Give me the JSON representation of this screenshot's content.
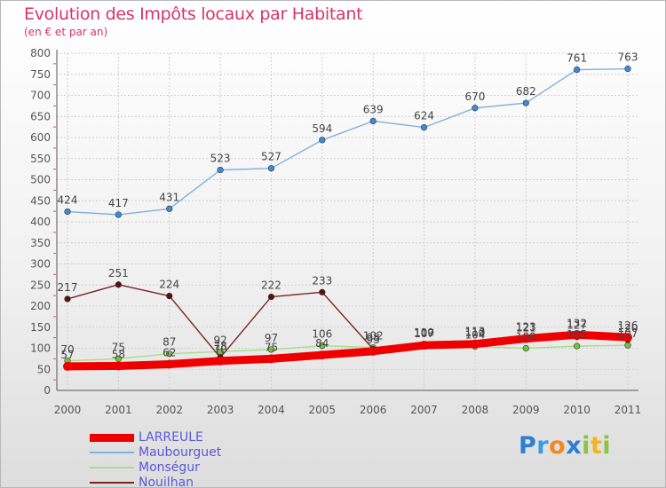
{
  "title": "Evolution des Impôts locaux par Habitant",
  "subtitle": "(en € et par an)",
  "logo": {
    "letters": [
      {
        "ch": "P",
        "color": "#2f7fd0"
      },
      {
        "ch": "r",
        "color": "#3a9be0"
      },
      {
        "ch": "o",
        "color": "#f08a1e"
      },
      {
        "ch": "x",
        "color": "#2f7fd0"
      },
      {
        "ch": "i",
        "color": "#8cc43f"
      },
      {
        "ch": "t",
        "color": "#f0b41e"
      },
      {
        "ch": "i",
        "color": "#8cc43f"
      }
    ]
  },
  "chart_data": {
    "type": "line",
    "x": [
      "2000",
      "2001",
      "2002",
      "2003",
      "2004",
      "2005",
      "2006",
      "2007",
      "2008",
      "2009",
      "2010",
      "2011"
    ],
    "yticks": [
      0,
      50,
      100,
      150,
      200,
      250,
      300,
      350,
      400,
      450,
      500,
      550,
      600,
      650,
      700,
      750,
      800
    ],
    "ylim": [
      0,
      800
    ],
    "grid": true,
    "legend_position": "bottom-left",
    "series": [
      {
        "name": "LARREULE",
        "color": "#ee0000",
        "marker": "#ee0000",
        "emphasis": true,
        "values": [
          57,
          58,
          62,
          70,
          75,
          84,
          93,
          107,
          110,
          123,
          132,
          126
        ],
        "labels": [
          "57",
          "58",
          "62",
          "70",
          "75",
          "84",
          "93",
          "107",
          "110",
          "123",
          "132",
          "126"
        ]
      },
      {
        "name": "Maubourguet",
        "color": "#7fb0dc",
        "marker": "#3b8bd6",
        "values": [
          424,
          417,
          431,
          523,
          527,
          594,
          639,
          624,
          670,
          682,
          761,
          763
        ],
        "labels": [
          "424",
          "417",
          "431",
          "523",
          "527",
          "594",
          "639",
          "624",
          "670",
          "682",
          "761",
          "763"
        ]
      },
      {
        "name": "Monségur",
        "color": "#a6de86",
        "marker": "#6cc63c",
        "values": [
          70,
          75,
          87,
          92,
          97,
          106,
          102,
          109,
          104,
          100,
          105,
          107
        ],
        "labels": [
          "70",
          "75",
          "87",
          "92",
          "97",
          "106",
          "102",
          "109",
          "104",
          "100",
          "105",
          "107"
        ]
      },
      {
        "name": "Nouilhan",
        "color": "#7a2424",
        "marker": "#5a1010",
        "values": [
          217,
          251,
          224,
          78,
          222,
          233,
          98,
          110,
          113,
          121,
          127,
          120
        ],
        "labels": [
          "217",
          "251",
          "224",
          "78",
          "222",
          "233",
          "98",
          "110",
          "113",
          "121",
          "127",
          "120"
        ]
      }
    ]
  }
}
